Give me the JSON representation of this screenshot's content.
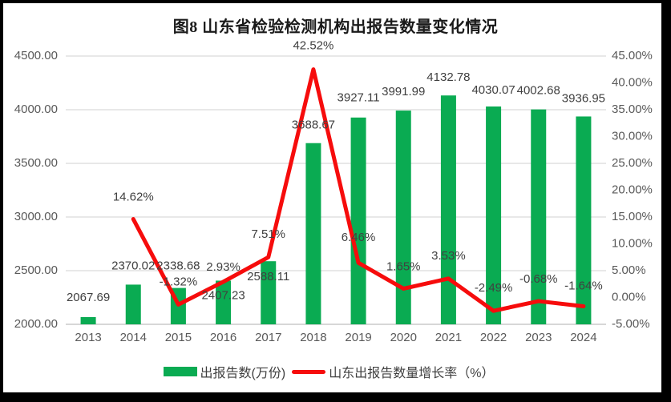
{
  "title": "图8  山东省检验检测机构出报告数量变化情况",
  "legend": [
    {
      "label": "出报告数(万份)",
      "marker": "bar-swatch"
    },
    {
      "label": "山东出报告数量增长率（%）",
      "marker": "line-swatch"
    }
  ],
  "colors": {
    "bar": "#0AAB52",
    "line": "#F60C0C",
    "grid": "#D9D9D9",
    "baseline": "#BFBFBF",
    "axis_text": "#595959",
    "data_label": "#404040",
    "background": "#FFFFFF",
    "frame": "#000000"
  },
  "chart_data": {
    "type": "bar",
    "subtype": "combo-bar-line-dual-axis",
    "title": "图8  山东省检验检测机构出报告数量变化情况",
    "categories": [
      "2013",
      "2014",
      "2015",
      "2016",
      "2017",
      "2018",
      "2019",
      "2020",
      "2021",
      "2022",
      "2023",
      "2024"
    ],
    "series": [
      {
        "name": "出报告数(万份)",
        "type": "bar",
        "axis": "left",
        "color": "#0AAB52",
        "values": [
          2067.69,
          2370.02,
          2338.68,
          2407.23,
          2588.11,
          3688.67,
          3927.11,
          3991.99,
          4132.78,
          4030.07,
          4002.68,
          3936.95
        ],
        "labels": [
          "2067.69",
          "2370.02",
          "2338.68",
          "2407.23",
          "2588.11",
          "3688.67",
          "3927.11",
          "3991.99",
          "4132.78",
          "4030.07",
          "4002.68",
          "3936.95"
        ]
      },
      {
        "name": "山东出报告数量增长率（%）",
        "type": "line",
        "axis": "right",
        "color": "#F60C0C",
        "values": [
          null,
          14.62,
          -1.32,
          2.93,
          7.51,
          42.52,
          6.46,
          1.65,
          3.53,
          -2.49,
          -0.68,
          -1.64
        ],
        "labels": [
          null,
          "14.62%",
          "-1.32%",
          "2.93%",
          "7.51%",
          "42.52%",
          "6.46%",
          "1.65%",
          "3.53%",
          "-2.49%",
          "-0.68%",
          "-1.64%"
        ]
      }
    ],
    "left_axis": {
      "min": 2000,
      "max": 4500,
      "step": 500,
      "ticks": [
        "4500.00",
        "4000.00",
        "3500.00",
        "3000.00",
        "2500.00",
        "2000.00"
      ]
    },
    "right_axis": {
      "min": -5,
      "max": 45,
      "step": 5,
      "ticks": [
        "45.00%",
        "40.00%",
        "35.00%",
        "30.00%",
        "25.00%",
        "20.00%",
        "15.00%",
        "10.00%",
        "5.00%",
        "0.00%",
        "-5.00%"
      ]
    },
    "grid": true,
    "legend_position": "bottom",
    "layout_hints": {
      "value_label_dy": [
        -24,
        -23,
        -27,
        19,
        20,
        -22,
        -24,
        -23,
        -22,
        -20,
        -23,
        -22
      ],
      "growth_label_dy": [
        null,
        -27,
        -28,
        -18,
        -28,
        -29,
        -31,
        -27,
        -28,
        -28,
        -27,
        -25
      ]
    }
  }
}
